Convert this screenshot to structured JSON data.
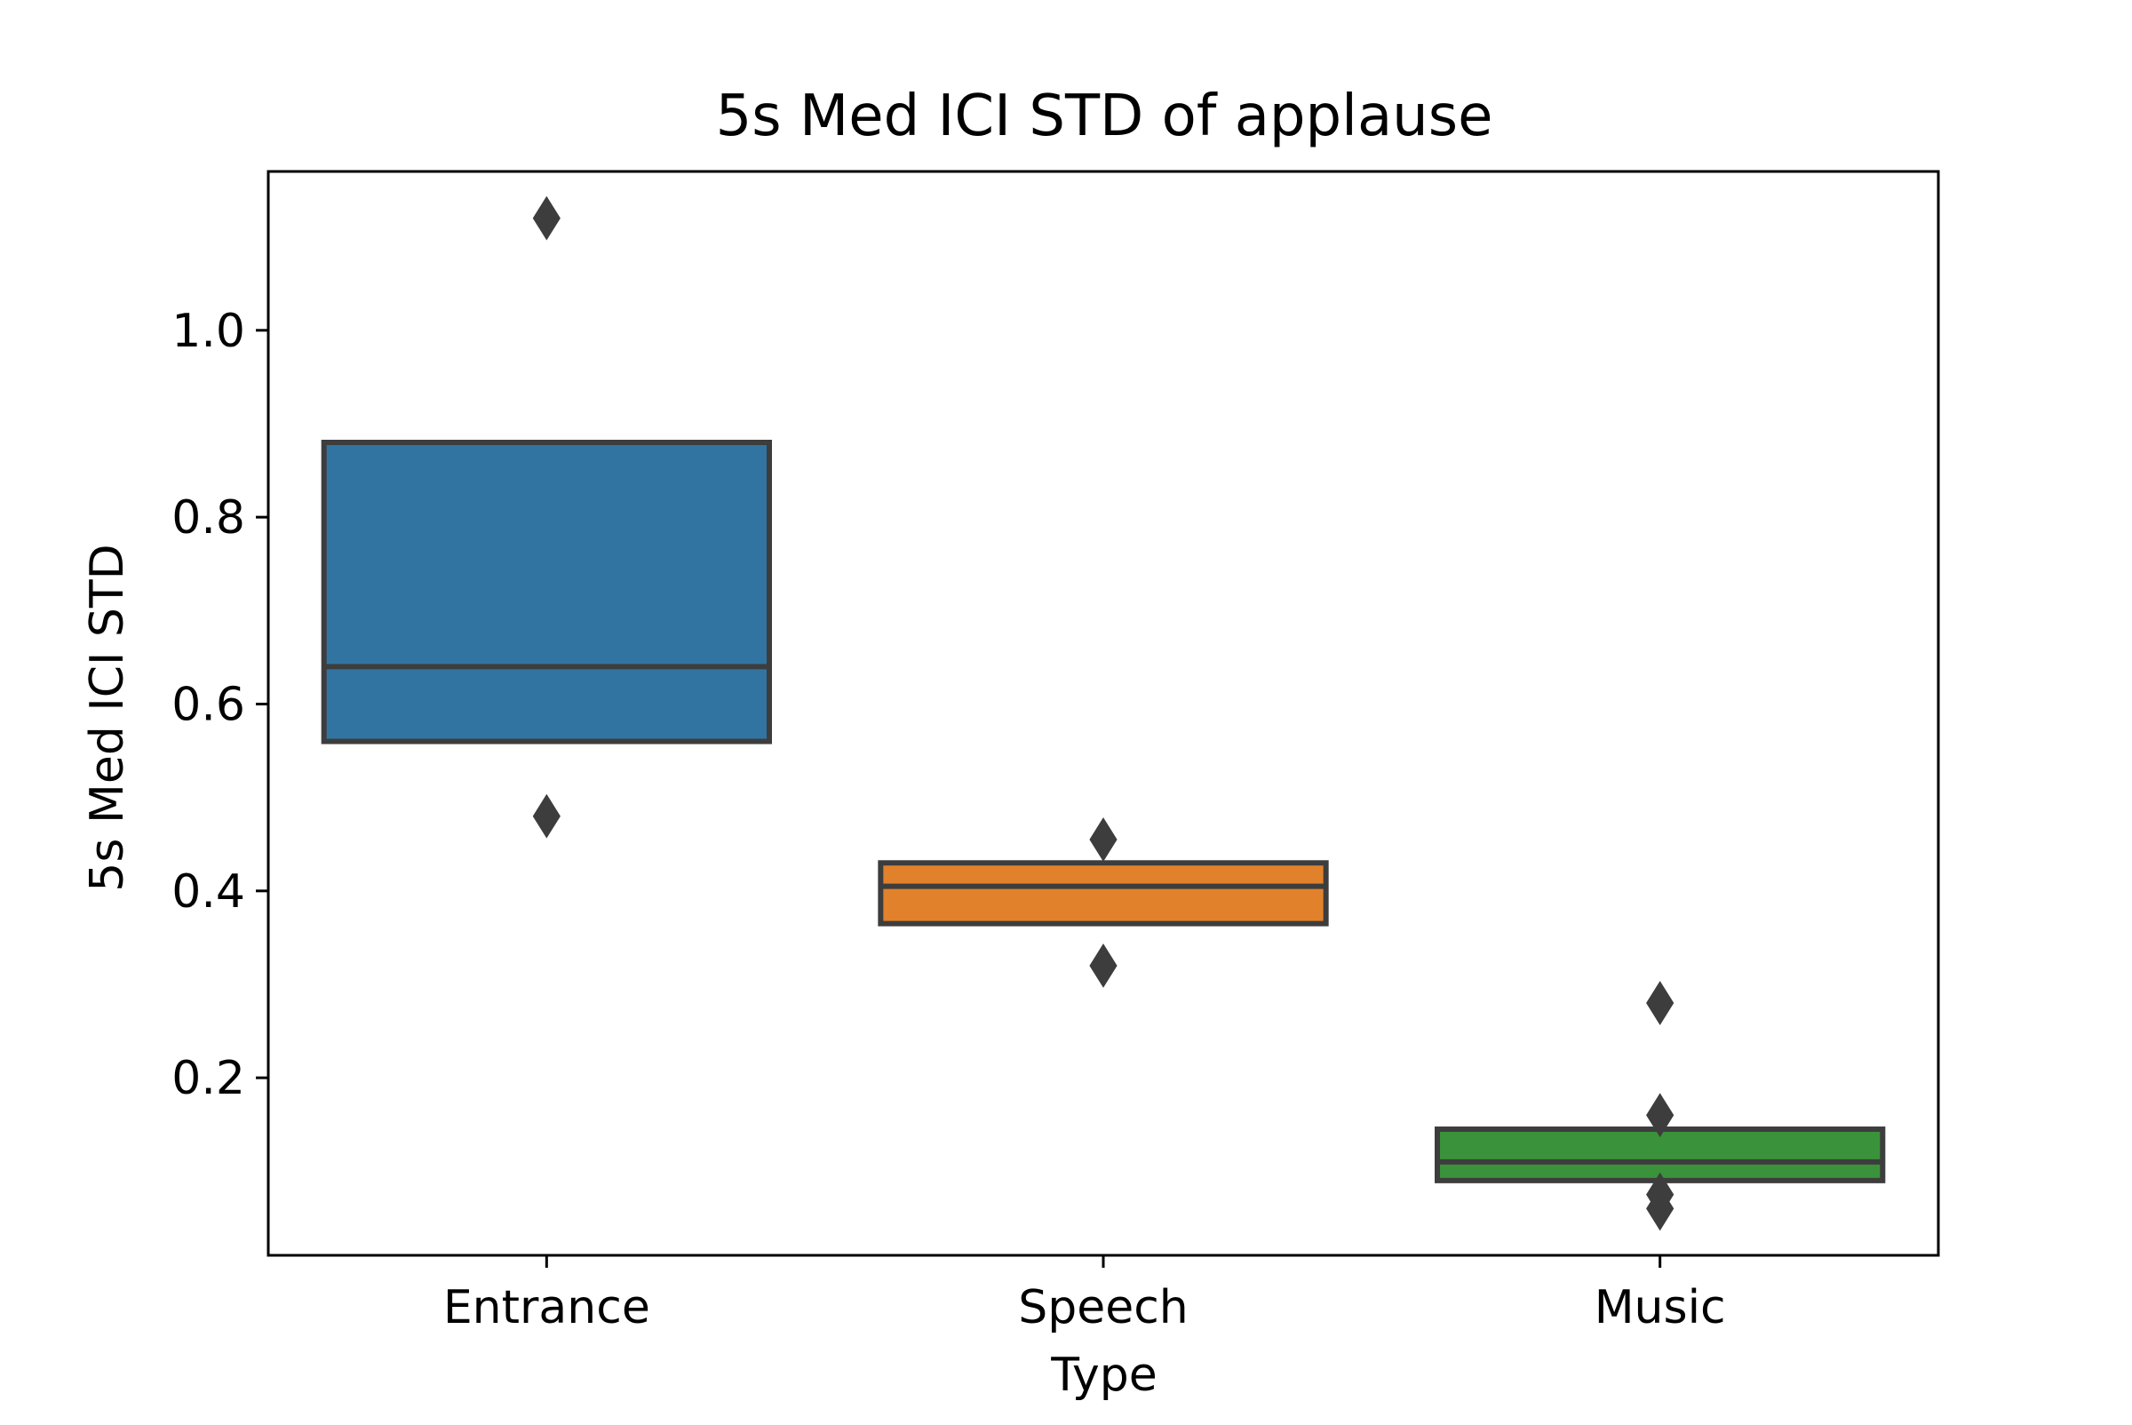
{
  "chart_data": {
    "type": "boxen",
    "title": "5s Med ICI STD of applause",
    "xlabel": "Type",
    "ylabel": "5s Med ICI STD",
    "categories": [
      "Entrance",
      "Speech",
      "Music"
    ],
    "ylim": [
      0.01,
      1.17
    ],
    "yticks": [
      0.2,
      0.4,
      0.6,
      0.8,
      1.0
    ],
    "ytick_labels": [
      "0.2",
      "0.4",
      "0.6",
      "0.8",
      "1.0"
    ],
    "grid": false,
    "legend": "none",
    "colors": [
      "#3274a1",
      "#e1812c",
      "#3a923a"
    ],
    "edge_color": "#3d3d3d",
    "series": [
      {
        "box_low": 0.56,
        "median": 0.64,
        "box_high": 0.88,
        "outliers": [
          1.12,
          0.48
        ]
      },
      {
        "box_low": 0.365,
        "median": 0.405,
        "box_high": 0.43,
        "outliers": [
          0.455,
          0.32
        ]
      },
      {
        "box_low": 0.09,
        "median": 0.11,
        "box_high": 0.145,
        "outliers": [
          0.28,
          0.16,
          0.075,
          0.06
        ]
      }
    ]
  }
}
